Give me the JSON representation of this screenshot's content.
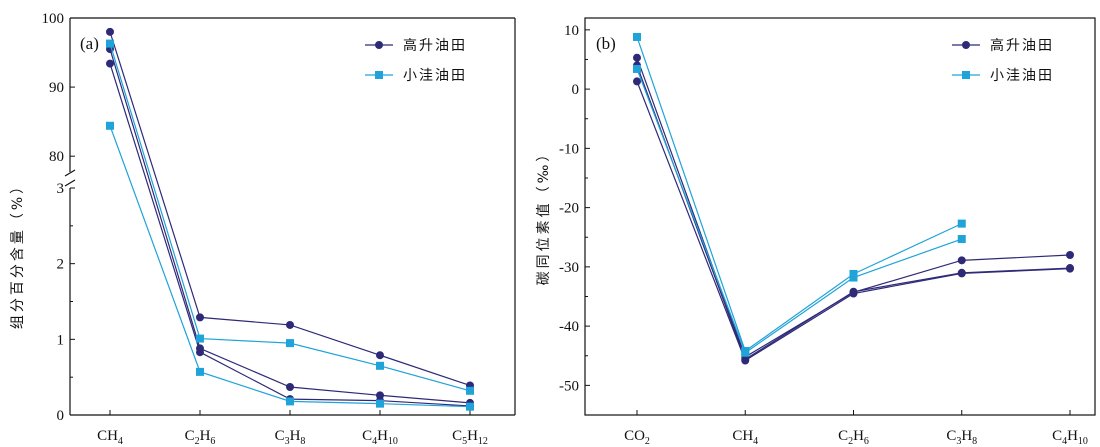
{
  "chart_data": [
    {
      "type": "line",
      "panel_label": "(a)",
      "ylabel": "组分百分含量（%）",
      "categories": [
        "CH4",
        "C2H6",
        "C3H8",
        "C4H10",
        "C5H12"
      ],
      "category_labels": [
        {
          "base": "CH",
          "sub": "4"
        },
        {
          "base": "C",
          "sub": "2",
          "base2": "H",
          "sub2": "6"
        },
        {
          "base": "C",
          "sub": "3",
          "base2": "H",
          "sub2": "8"
        },
        {
          "base": "C",
          "sub": "4",
          "base2": "H",
          "sub2": "10"
        },
        {
          "base": "C",
          "sub": "5",
          "base2": "H",
          "sub2": "12"
        }
      ],
      "y_axis_broken": true,
      "ylim_lower": [
        0,
        3
      ],
      "ylim_upper": [
        78,
        100
      ],
      "yticks_lower": [
        "0",
        "1",
        "2",
        "3"
      ],
      "yticks_upper": [
        "80",
        "90",
        "100"
      ],
      "legend_position": "top-right",
      "series": [
        {
          "name": "高升油田",
          "marker": "circle",
          "color": "#2e2a78",
          "values": [
            98.0,
            1.29,
            1.19,
            0.79,
            0.39
          ]
        },
        {
          "name": "高升油田",
          "marker": "circle",
          "color": "#2e2a78",
          "values": [
            95.5,
            0.88,
            0.37,
            0.26,
            0.16
          ]
        },
        {
          "name": "高升油田",
          "marker": "circle",
          "color": "#2e2a78",
          "values": [
            93.4,
            0.83,
            0.21,
            0.19,
            0.12
          ]
        },
        {
          "name": "小洼油田",
          "marker": "square",
          "color": "#1fa3d8",
          "values": [
            96.3,
            1.01,
            0.95,
            0.65,
            0.32
          ]
        },
        {
          "name": "小洼油田",
          "marker": "square",
          "color": "#1fa3d8",
          "values": [
            84.4,
            0.57,
            0.18,
            0.15,
            0.11
          ]
        }
      ]
    },
    {
      "type": "line",
      "panel_label": "(b)",
      "ylabel": "碳同位素值（‰）",
      "categories": [
        "CO2",
        "CH4",
        "C2H6",
        "C3H8",
        "C4H10"
      ],
      "category_labels": [
        {
          "base": "CO",
          "sub": "2"
        },
        {
          "base": "CH",
          "sub": "4"
        },
        {
          "base": "C",
          "sub": "2",
          "base2": "H",
          "sub2": "6"
        },
        {
          "base": "C",
          "sub": "3",
          "base2": "H",
          "sub2": "8"
        },
        {
          "base": "C",
          "sub": "4",
          "base2": "H",
          "sub2": "10"
        }
      ],
      "ylim": [
        -55,
        12
      ],
      "yticks": [
        "10",
        "0",
        "-10",
        "-20",
        "-30",
        "-40",
        "-50"
      ],
      "legend_position": "top-right",
      "series": [
        {
          "name": "高升油田",
          "marker": "circle",
          "color": "#2e2a78",
          "values": [
            5.3,
            -45.2,
            -34.3,
            -28.9,
            -28.0
          ]
        },
        {
          "name": "高升油田",
          "marker": "circle",
          "color": "#2e2a78",
          "values": [
            4.0,
            -45.6,
            -34.2,
            -31.0,
            -30.2
          ]
        },
        {
          "name": "高升油田",
          "marker": "circle",
          "color": "#2e2a78",
          "values": [
            1.3,
            -45.8,
            -34.5,
            -31.1,
            -30.3
          ]
        },
        {
          "name": "小洼油田",
          "marker": "square",
          "color": "#1fa3d8",
          "values": [
            8.8,
            -44.2,
            -31.2,
            -22.7,
            null
          ]
        },
        {
          "name": "小洼油田",
          "marker": "square",
          "color": "#1fa3d8",
          "values": [
            3.4,
            -44.5,
            -31.8,
            -25.3,
            null
          ]
        }
      ]
    }
  ],
  "legend": {
    "items": [
      {
        "label": "高升油田",
        "marker": "circle",
        "color": "#2e2a78"
      },
      {
        "label": "小洼油田",
        "marker": "square",
        "color": "#1fa3d8"
      }
    ]
  }
}
